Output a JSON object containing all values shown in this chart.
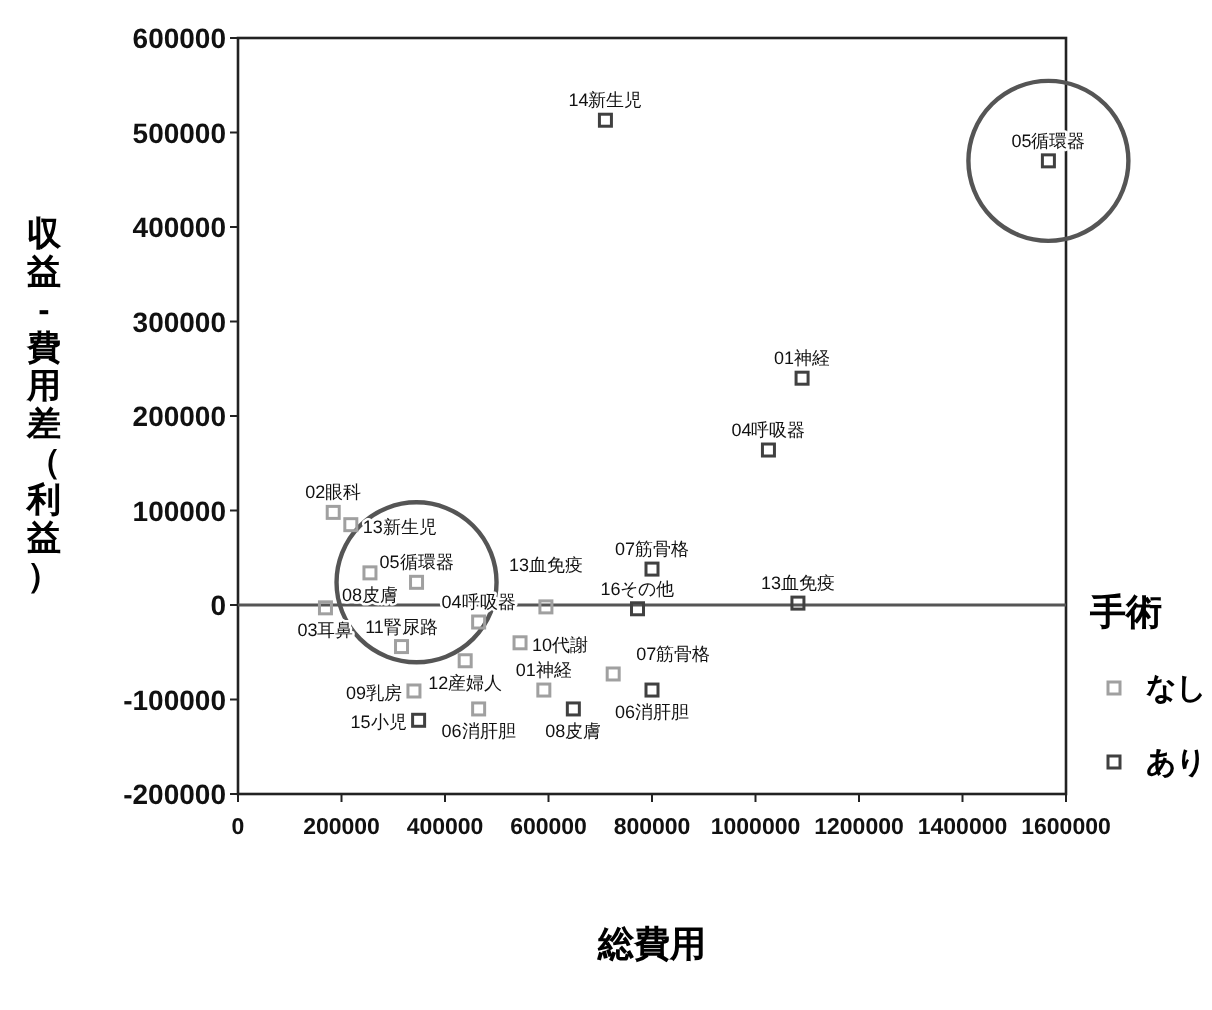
{
  "chart_data": {
    "type": "scatter",
    "xlabel": "総費用",
    "ylabel": "収益-費用差（利益）",
    "legend_title": "手術",
    "legend": "right",
    "marker": "square",
    "grid": false,
    "xlim": [
      0,
      1600000
    ],
    "ylim": [
      -200000,
      600000
    ],
    "xticks": [
      0,
      200000,
      400000,
      600000,
      800000,
      1000000,
      1200000,
      1400000,
      1600000
    ],
    "yticks": [
      -200000,
      -100000,
      0,
      100000,
      200000,
      300000,
      400000,
      500000,
      600000
    ],
    "ref_lines": [
      {
        "axis": "y",
        "value": 0,
        "color": "#555555"
      }
    ],
    "series": [
      {
        "name": "なし",
        "color": "#a0a0a0",
        "x": [
          345000,
          184000,
          218000,
          255000,
          169000,
          465000,
          595000,
          316000,
          439000,
          545000,
          340000,
          591000,
          465000,
          725000
        ],
        "values": [
          24000,
          98000,
          85000,
          34000,
          -3000,
          -18000,
          -2000,
          -44000,
          -59000,
          -40000,
          -91000,
          -90000,
          -110000,
          -73000
        ]
      },
      {
        "name": "あり",
        "color": "#404040",
        "x": [
          1566000,
          710000,
          1090000,
          1025000,
          800000,
          1082000,
          772000,
          800000,
          648000,
          349000
        ],
        "values": [
          470000,
          513000,
          240000,
          164000,
          38000,
          2000,
          -4000,
          -90000,
          -110000,
          -122000
        ]
      }
    ],
    "annotations": [
      {
        "text": "05循環器",
        "x": 345000,
        "y": 24000
      },
      {
        "text": "02眼科",
        "x": 184000,
        "y": 98000
      },
      {
        "text": "13新生児",
        "x": 218000,
        "y": 85000
      },
      {
        "text": "08皮膚",
        "x": 255000,
        "y": 34000
      },
      {
        "text": "03耳鼻",
        "x": 169000,
        "y": -3000
      },
      {
        "text": "04呼吸器",
        "x": 465000,
        "y": -18000
      },
      {
        "text": "13血免疫",
        "x": 595000,
        "y": -2000
      },
      {
        "text": "11腎尿路",
        "x": 316000,
        "y": -44000
      },
      {
        "text": "12産婦人",
        "x": 439000,
        "y": -59000
      },
      {
        "text": "10代謝",
        "x": 545000,
        "y": -40000
      },
      {
        "text": "09乳房",
        "x": 340000,
        "y": -91000
      },
      {
        "text": "01神経",
        "x": 591000,
        "y": -90000
      },
      {
        "text": "06消肝胆",
        "x": 465000,
        "y": -110000
      },
      {
        "text": "07筋骨格",
        "x": 725000,
        "y": -73000
      },
      {
        "text": "05循環器",
        "x": 1566000,
        "y": 470000
      },
      {
        "text": "14新生児",
        "x": 710000,
        "y": 513000
      },
      {
        "text": "01神経",
        "x": 1090000,
        "y": 240000
      },
      {
        "text": "04呼吸器",
        "x": 1025000,
        "y": 164000
      },
      {
        "text": "07筋骨格",
        "x": 800000,
        "y": 38000
      },
      {
        "text": "13血免疫",
        "x": 1082000,
        "y": 2000
      },
      {
        "text": "16その他",
        "x": 772000,
        "y": -4000
      },
      {
        "text": "06消肝胆",
        "x": 800000,
        "y": -90000
      },
      {
        "text": "08皮膚",
        "x": 648000,
        "y": -110000
      },
      {
        "text": "15小児",
        "x": 349000,
        "y": -122000
      }
    ]
  }
}
